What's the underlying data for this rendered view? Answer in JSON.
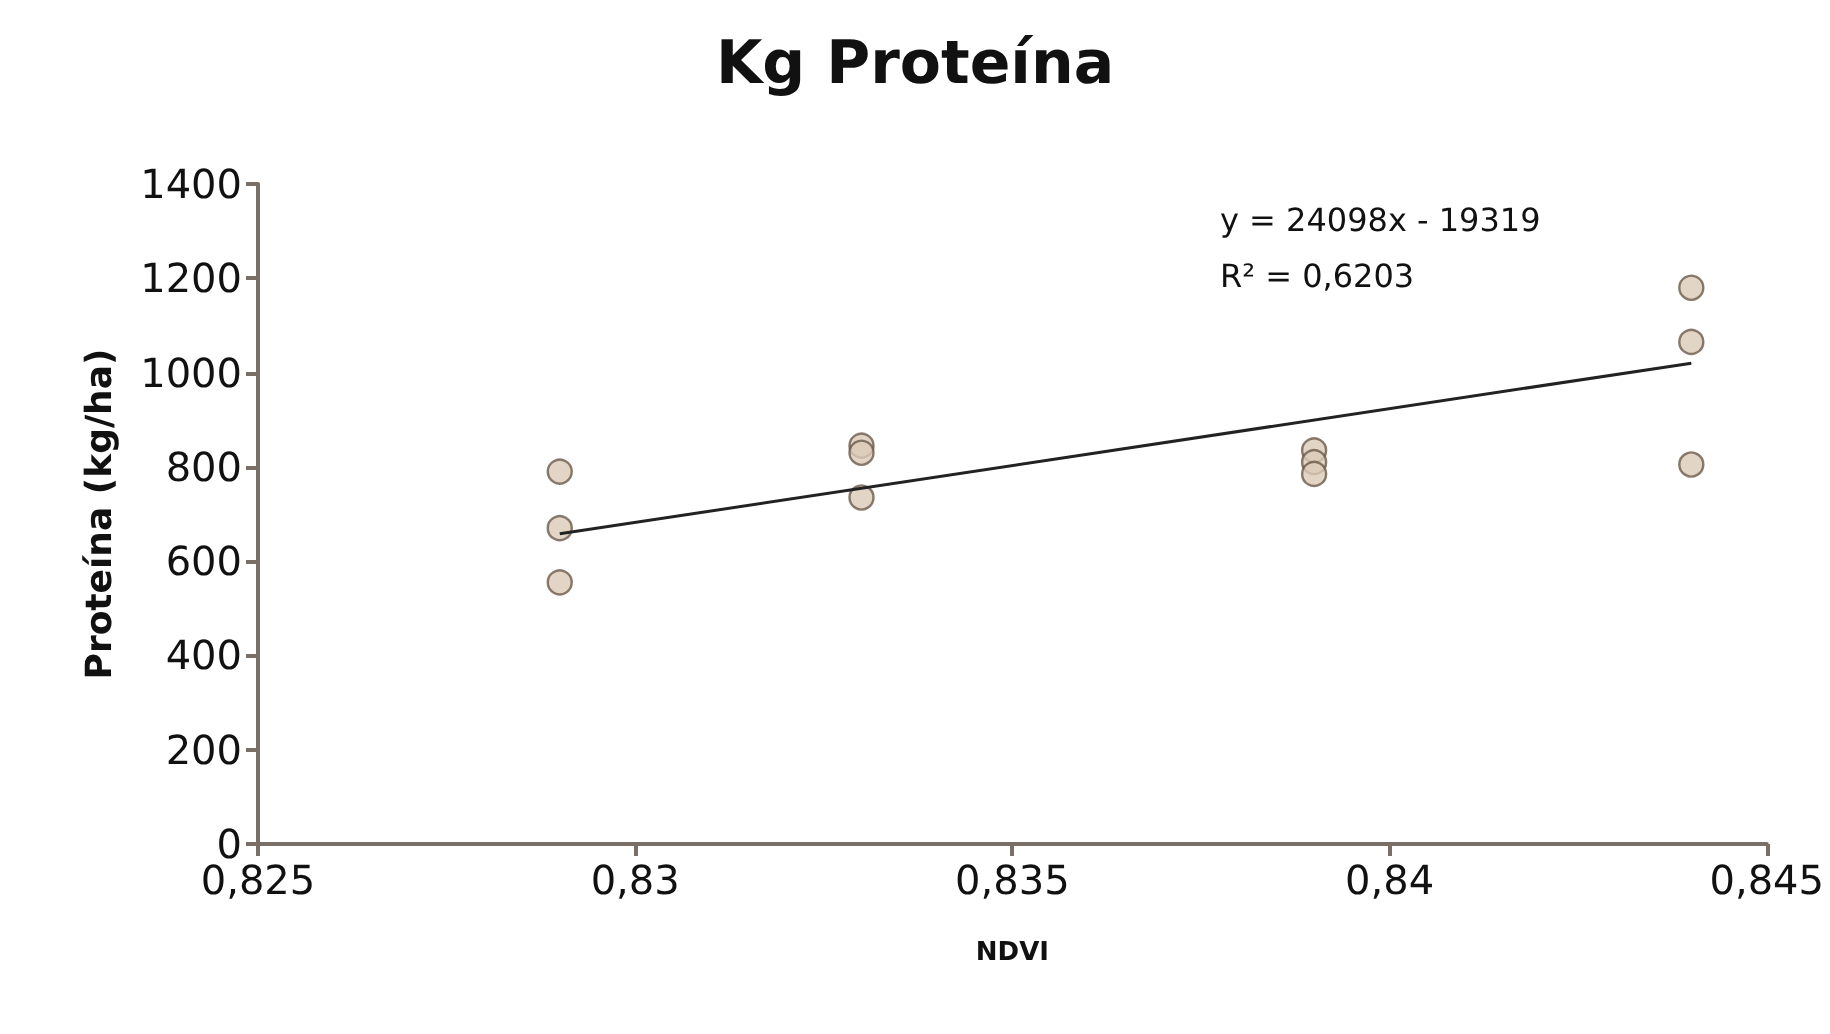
{
  "chart_data": {
    "type": "scatter",
    "title": "Kg Proteína",
    "xlabel": "NDVI",
    "ylabel": "Proteína (kg/ha)",
    "xlim": [
      0.825,
      0.845
    ],
    "xticks": [
      {
        "value": 0.825,
        "label": "0,825"
      },
      {
        "value": 0.83,
        "label": "0,83"
      },
      {
        "value": 0.835,
        "label": "0,835"
      },
      {
        "value": 0.84,
        "label": "0,84"
      },
      {
        "value": 0.845,
        "label": "0,845"
      }
    ],
    "ylim": [
      0,
      1400
    ],
    "yticks": [
      0,
      200,
      400,
      600,
      800,
      1000,
      1200,
      1400
    ],
    "grid": false,
    "marker": "circle",
    "annotations": [
      "y = 24098x - 19319",
      "R² = 0,6203"
    ],
    "series": [
      {
        "color": "#dccbb8",
        "x": [
          0.829,
          0.829,
          0.829,
          0.833,
          0.833,
          0.833,
          0.839,
          0.839,
          0.839,
          0.844,
          0.844,
          0.844
        ],
        "values": [
          790,
          670,
          555,
          845,
          830,
          735,
          835,
          810,
          785,
          1180,
          1065,
          805
        ]
      },
      {
        "type": "line",
        "marker": "none",
        "color": "#222222",
        "x": [
          0.829,
          0.844
        ],
        "values": [
          658,
          1020
        ]
      }
    ]
  }
}
